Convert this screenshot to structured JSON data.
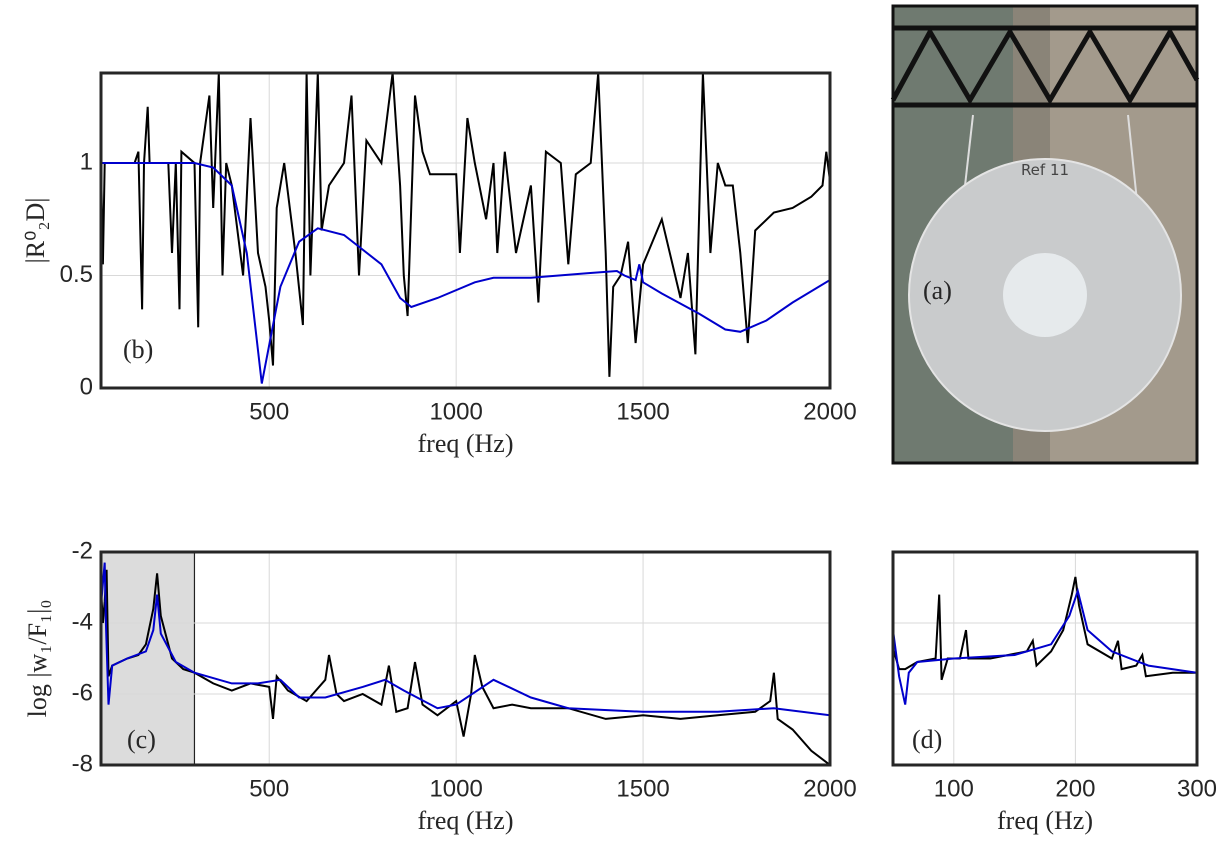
{
  "chart_data": [
    {
      "type": "line",
      "panel_label": "(b)",
      "xlabel": "freq (Hz)",
      "ylabel": "|R⁰₂D|",
      "xlim": [
        50,
        2000
      ],
      "ylim": [
        0,
        1.4
      ],
      "xticks": [
        500,
        1000,
        1500,
        2000
      ],
      "yticks": [
        0,
        0.5,
        1
      ],
      "grid": true,
      "show_ytick_labels": true,
      "series": [
        {
          "color": "#000000",
          "x": [
            50,
            55,
            60,
            100,
            140,
            150,
            160,
            165,
            175,
            180,
            230,
            240,
            250,
            260,
            265,
            300,
            310,
            315,
            340,
            350,
            365,
            375,
            385,
            400,
            430,
            450,
            470,
            490,
            500,
            510,
            520,
            540,
            570,
            590,
            600,
            610,
            630,
            640,
            660,
            700,
            720,
            740,
            760,
            800,
            830,
            850,
            860,
            870,
            890,
            910,
            930,
            960,
            990,
            1000,
            1010,
            1030,
            1050,
            1080,
            1100,
            1110,
            1130,
            1160,
            1200,
            1220,
            1240,
            1280,
            1300,
            1320,
            1360,
            1380,
            1400,
            1410,
            1420,
            1440,
            1460,
            1480,
            1500,
            1550,
            1600,
            1620,
            1640,
            1660,
            1680,
            1700,
            1720,
            1740,
            1760,
            1780,
            1800,
            1850,
            1900,
            1950,
            1980,
            1990,
            2000
          ],
          "values": [
            1.0,
            0.55,
            1.0,
            1.0,
            1.0,
            1.05,
            0.35,
            1.0,
            1.25,
            1.0,
            1.0,
            0.6,
            1.0,
            0.35,
            1.05,
            1.0,
            0.27,
            1.0,
            1.3,
            0.8,
            1.4,
            0.5,
            1.0,
            0.9,
            0.5,
            1.2,
            0.6,
            0.45,
            0.3,
            0.1,
            0.8,
            1.0,
            0.6,
            0.28,
            1.4,
            0.5,
            1.4,
            0.7,
            0.9,
            1.0,
            1.3,
            0.5,
            1.1,
            1.0,
            1.4,
            0.9,
            0.5,
            0.32,
            1.3,
            1.05,
            0.95,
            0.95,
            0.95,
            0.95,
            0.6,
            1.2,
            1.0,
            0.75,
            1.0,
            0.6,
            1.05,
            0.6,
            0.9,
            0.38,
            1.05,
            1.0,
            0.55,
            0.95,
            1.0,
            1.4,
            0.6,
            0.05,
            0.45,
            0.5,
            0.65,
            0.2,
            0.55,
            0.75,
            0.4,
            0.6,
            0.15,
            1.4,
            0.6,
            1.0,
            0.9,
            0.9,
            0.6,
            0.2,
            0.7,
            0.78,
            0.8,
            0.85,
            0.9,
            1.05,
            0.92
          ]
        },
        {
          "color": "#0000cc",
          "x": [
            50,
            300,
            350,
            400,
            440,
            480,
            530,
            580,
            630,
            700,
            800,
            850,
            880,
            950,
            1050,
            1100,
            1200,
            1350,
            1430,
            1450,
            1480,
            1490,
            1500,
            1550,
            1650,
            1720,
            1760,
            1830,
            1900,
            2000
          ],
          "values": [
            1.0,
            1.0,
            0.98,
            0.9,
            0.6,
            0.02,
            0.45,
            0.65,
            0.71,
            0.68,
            0.55,
            0.4,
            0.36,
            0.4,
            0.47,
            0.49,
            0.49,
            0.51,
            0.52,
            0.5,
            0.48,
            0.55,
            0.47,
            0.42,
            0.33,
            0.26,
            0.25,
            0.3,
            0.38,
            0.48
          ]
        }
      ]
    },
    {
      "type": "line",
      "panel_label": "(c)",
      "xlabel": "freq (Hz)",
      "ylabel": "log |w₁/F₁|₀",
      "xlim": [
        50,
        2000
      ],
      "ylim": [
        -8,
        -2
      ],
      "xticks": [
        500,
        1000,
        1500,
        2000
      ],
      "yticks": [
        -8,
        -6,
        -4,
        -2
      ],
      "grid": true,
      "show_ytick_labels": true,
      "highlight": [
        50,
        300
      ],
      "series": [
        {
          "color": "#000000",
          "x": [
            50,
            55,
            60,
            65,
            70,
            80,
            100,
            120,
            150,
            170,
            190,
            200,
            210,
            240,
            270,
            300,
            350,
            400,
            450,
            500,
            510,
            520,
            550,
            600,
            650,
            660,
            680,
            700,
            750,
            800,
            820,
            840,
            870,
            890,
            910,
            950,
            1000,
            1020,
            1040,
            1050,
            1070,
            1100,
            1150,
            1200,
            1300,
            1400,
            1500,
            1600,
            1700,
            1800,
            1840,
            1850,
            1860,
            1900,
            1950,
            2000
          ],
          "values": [
            -3,
            -4,
            -3.4,
            -2.5,
            -5.5,
            -5.2,
            -5.1,
            -5,
            -4.9,
            -4.6,
            -3.6,
            -2.6,
            -3.8,
            -5,
            -5.3,
            -5.4,
            -5.7,
            -5.9,
            -5.7,
            -5.8,
            -6.7,
            -5.5,
            -5.9,
            -6.2,
            -5.6,
            -4.9,
            -6,
            -6.2,
            -6,
            -6.3,
            -5.2,
            -6.5,
            -6.4,
            -5.1,
            -6.3,
            -6.6,
            -6.2,
            -7.2,
            -6,
            -4.9,
            -5.8,
            -6.4,
            -6.3,
            -6.4,
            -6.4,
            -6.7,
            -6.6,
            -6.7,
            -6.6,
            -6.5,
            -6.2,
            -5.4,
            -6.7,
            -7,
            -7.6,
            -8
          ]
        },
        {
          "color": "#0000cc",
          "x": [
            50,
            60,
            63,
            70,
            80,
            120,
            170,
            190,
            200,
            210,
            250,
            300,
            400,
            470,
            530,
            580,
            650,
            750,
            810,
            860,
            950,
            1000,
            1100,
            1200,
            1300,
            1500,
            1700,
            1850,
            2000
          ],
          "values": [
            -3.5,
            -2.3,
            -4,
            -6.3,
            -5.2,
            -5,
            -4.8,
            -4.2,
            -3.2,
            -4.3,
            -5.1,
            -5.4,
            -5.7,
            -5.7,
            -5.6,
            -6.1,
            -6.1,
            -5.8,
            -5.6,
            -5.9,
            -6.4,
            -6.3,
            -5.6,
            -6.1,
            -6.4,
            -6.5,
            -6.5,
            -6.4,
            -6.6
          ]
        }
      ]
    },
    {
      "type": "line",
      "panel_label": "(d)",
      "xlabel": "freq (Hz)",
      "xlim": [
        50,
        300
      ],
      "ylim": [
        -8,
        -2
      ],
      "xticks": [
        100,
        200,
        300
      ],
      "yticks": [
        -8,
        -6,
        -4,
        -2
      ],
      "grid": true,
      "show_ytick_labels": false,
      "series": [
        {
          "color": "#000000",
          "x": [
            50,
            55,
            60,
            70,
            85,
            88,
            90,
            95,
            105,
            110,
            112,
            130,
            160,
            165,
            168,
            180,
            190,
            197,
            200,
            203,
            210,
            230,
            235,
            238,
            250,
            255,
            258,
            280,
            300
          ],
          "values": [
            -4.7,
            -5.3,
            -5.3,
            -5.1,
            -5,
            -3.2,
            -5.6,
            -5,
            -5,
            -4.2,
            -5,
            -5,
            -4.8,
            -4.5,
            -5.2,
            -4.8,
            -4.2,
            -3.2,
            -2.7,
            -3.5,
            -4.6,
            -5,
            -4.5,
            -5.3,
            -5.2,
            -4.9,
            -5.5,
            -5.4,
            -5.4
          ]
        },
        {
          "color": "#0000cc",
          "x": [
            50,
            55,
            60,
            63,
            70,
            100,
            150,
            180,
            195,
            202,
            210,
            230,
            260,
            300
          ],
          "values": [
            -4.2,
            -5.5,
            -6.3,
            -5.4,
            -5.1,
            -5,
            -4.9,
            -4.6,
            -3.8,
            -3.1,
            -4.2,
            -4.8,
            -5.2,
            -5.4
          ]
        }
      ]
    }
  ],
  "photo": {
    "panel_label": "(a)",
    "plate_text": "Ref 11"
  }
}
